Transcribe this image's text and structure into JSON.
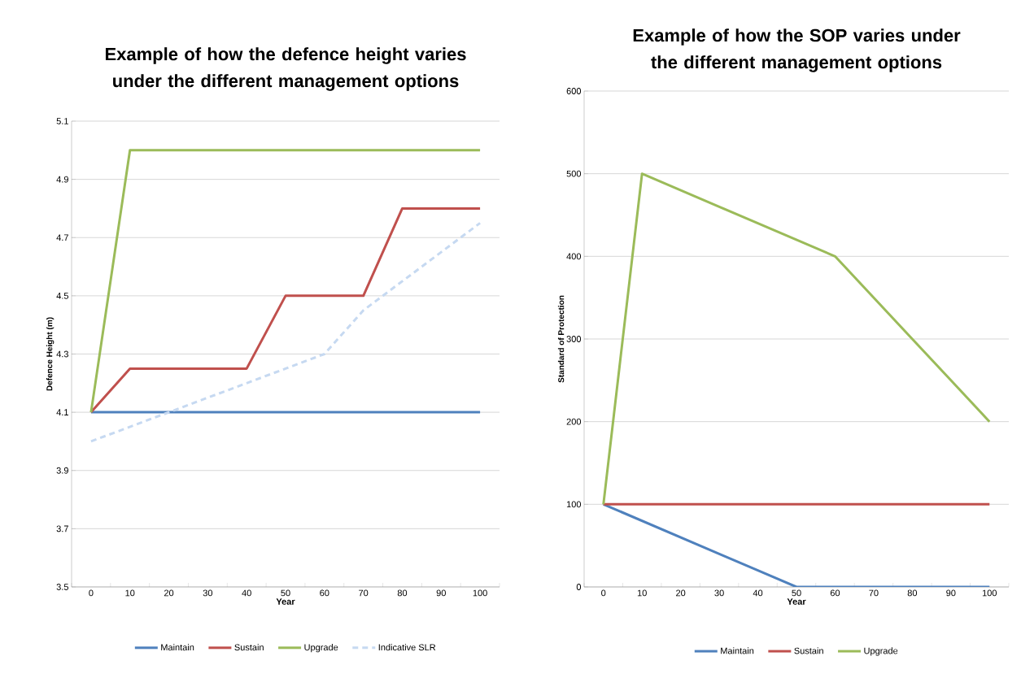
{
  "chart_data": [
    {
      "type": "line",
      "title": "Example of how the defence height varies under the different management options",
      "xlabel": "Year",
      "ylabel": "Defence Height (m)",
      "categories": [
        "0",
        "10",
        "20",
        "30",
        "40",
        "50",
        "60",
        "70",
        "80",
        "90",
        "100"
      ],
      "series": [
        {
          "name": "Maintain",
          "color": "#4f81bd",
          "values": [
            4.1,
            4.1,
            4.1,
            4.1,
            4.1,
            4.1,
            4.1,
            4.1,
            4.1,
            4.1,
            4.1
          ]
        },
        {
          "name": "Sustain",
          "color": "#c0504d",
          "values": [
            4.1,
            4.25,
            4.25,
            4.25,
            4.25,
            4.5,
            4.5,
            4.5,
            4.8,
            4.8,
            4.8
          ]
        },
        {
          "name": "Upgrade",
          "color": "#9bbb59",
          "values": [
            4.1,
            5.0,
            5.0,
            5.0,
            5.0,
            5.0,
            5.0,
            5.0,
            5.0,
            5.0,
            5.0
          ]
        },
        {
          "name": "Indicative SLR",
          "color": "#c6d9f1",
          "line_style": "dashed",
          "values": [
            4.0,
            4.05,
            4.1,
            4.15,
            4.2,
            4.25,
            4.3,
            4.45,
            4.55,
            4.65,
            4.75
          ]
        }
      ],
      "ylim": [
        3.5,
        5.1
      ],
      "yticks": [
        3.5,
        3.7,
        3.9,
        4.1,
        4.3,
        4.5,
        4.7,
        4.9,
        5.1
      ],
      "grid": "y",
      "legend": "bottom"
    },
    {
      "type": "line",
      "title": "Example of how the SOP varies under the different management options",
      "xlabel": "Year",
      "ylabel": "Standard of Protection",
      "categories": [
        "0",
        "10",
        "20",
        "30",
        "40",
        "50",
        "60",
        "70",
        "80",
        "90",
        "100"
      ],
      "series": [
        {
          "name": "Maintain",
          "color": "#4f81bd",
          "values": [
            100,
            80,
            60,
            40,
            20,
            0,
            0,
            0,
            0,
            0,
            0
          ]
        },
        {
          "name": "Sustain",
          "color": "#c0504d",
          "values": [
            100,
            100,
            100,
            100,
            100,
            100,
            100,
            100,
            100,
            100,
            100
          ]
        },
        {
          "name": "Upgrade",
          "color": "#9bbb59",
          "values": [
            100,
            500,
            480,
            460,
            440,
            420,
            400,
            350,
            300,
            250,
            200
          ]
        }
      ],
      "ylim": [
        0,
        600
      ],
      "yticks": [
        0,
        100,
        200,
        300,
        400,
        500,
        600
      ],
      "grid": "y",
      "legend": "bottom"
    }
  ]
}
